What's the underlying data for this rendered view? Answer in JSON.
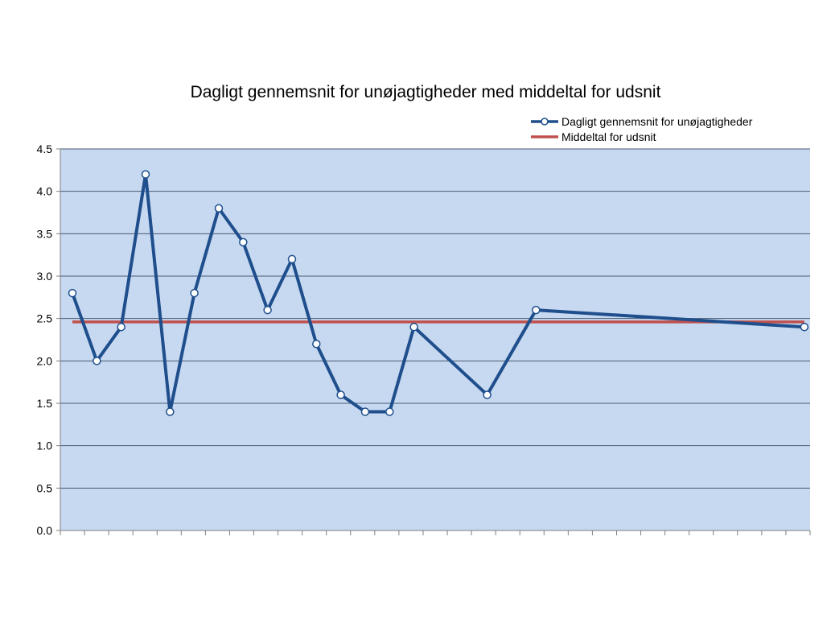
{
  "chart_data": {
    "type": "line",
    "title": "Dagligt gennemsnit for unøjagtigheder med middeltal for udsnit",
    "xlabel": "",
    "ylabel": "",
    "ylim": [
      0,
      4.5
    ],
    "yticks": [
      "0.0",
      "0.5",
      "1.0",
      "1.5",
      "2.0",
      "2.5",
      "3.0",
      "3.5",
      "4.0",
      "4.5"
    ],
    "x_count": 31,
    "grid": true,
    "legend_position": "top-right",
    "colors": {
      "plot_background": "#c6d9f1",
      "grid": "#4a5a72",
      "series_daily": "#1f4e8c",
      "series_mean": "#c0504d"
    },
    "series": [
      {
        "name": "Dagligt gennemsnit for unøjagtigheder",
        "x": [
          1,
          2,
          3,
          4,
          5,
          6,
          7,
          8,
          9,
          10,
          11,
          12,
          13,
          14,
          15,
          16,
          18,
          20,
          31
        ],
        "values": [
          2.8,
          2.0,
          2.4,
          4.2,
          1.4,
          2.8,
          3.8,
          3.4,
          2.6,
          3.2,
          2.2,
          1.6,
          1.4,
          1.4,
          2.4,
          null,
          1.6,
          2.6,
          2.4
        ],
        "markers": true
      },
      {
        "name": "Middeltal for udsnit",
        "x": [
          1,
          31
        ],
        "values": [
          2.46,
          2.46
        ],
        "markers": false
      }
    ]
  }
}
